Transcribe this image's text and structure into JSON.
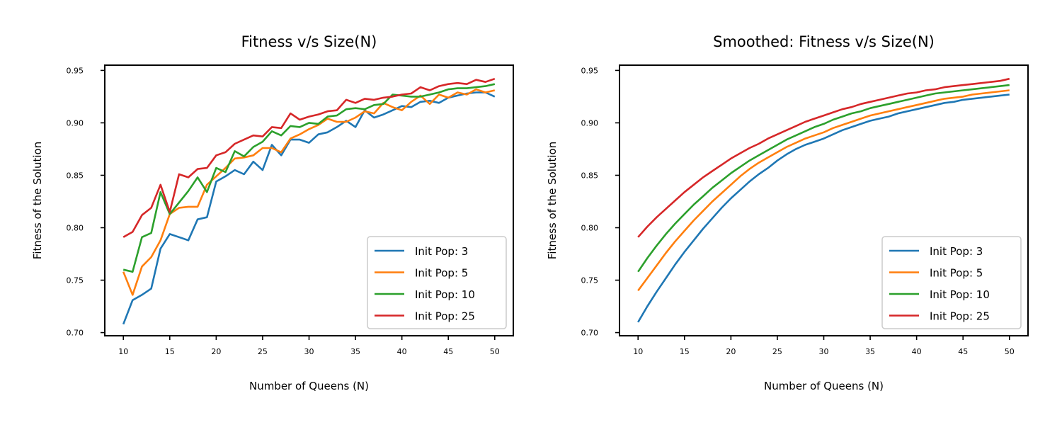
{
  "colors": {
    "blue": "#1f77b4",
    "orange": "#ff7f0e",
    "green": "#2ca02c",
    "red": "#d62728"
  },
  "chart_data": [
    {
      "type": "line",
      "title": "Fitness v/s Size(N)",
      "xlabel": "Number of Queens (N)",
      "ylabel": "Fitness of the Solution",
      "xlim": [
        8,
        52
      ],
      "ylim": [
        0.697,
        0.955
      ],
      "xticks": [
        10,
        15,
        20,
        25,
        30,
        35,
        40,
        45,
        50
      ],
      "xtick_labels": [
        "10",
        "15",
        "20",
        "25",
        "30",
        "35",
        "40",
        "45",
        "50"
      ],
      "yticks": [
        0.7,
        0.75,
        0.8,
        0.85,
        0.9,
        0.95
      ],
      "ytick_labels": [
        "0.70",
        "0.75",
        "0.80",
        "0.85",
        "0.90",
        "0.95"
      ],
      "grid": false,
      "legend_position": "lower-right",
      "x": [
        10,
        11,
        12,
        13,
        14,
        15,
        16,
        17,
        18,
        19,
        20,
        21,
        22,
        23,
        24,
        25,
        26,
        27,
        28,
        29,
        30,
        31,
        32,
        33,
        34,
        35,
        36,
        37,
        38,
        39,
        40,
        41,
        42,
        43,
        44,
        45,
        46,
        47,
        48,
        49,
        50
      ],
      "series": [
        {
          "name": "Init Pop: 3",
          "color": "#1f77b4",
          "values": [
            0.708,
            0.731,
            0.736,
            0.742,
            0.78,
            0.794,
            0.791,
            0.788,
            0.808,
            0.81,
            0.844,
            0.849,
            0.855,
            0.851,
            0.863,
            0.855,
            0.879,
            0.869,
            0.884,
            0.884,
            0.881,
            0.889,
            0.891,
            0.896,
            0.902,
            0.896,
            0.912,
            0.905,
            0.908,
            0.912,
            0.916,
            0.915,
            0.92,
            0.921,
            0.919,
            0.924,
            0.926,
            0.928,
            0.929,
            0.929,
            0.925
          ]
        },
        {
          "name": "Init Pop: 5",
          "color": "#ff7f0e",
          "values": [
            0.758,
            0.736,
            0.763,
            0.772,
            0.788,
            0.813,
            0.819,
            0.82,
            0.82,
            0.841,
            0.849,
            0.857,
            0.866,
            0.867,
            0.869,
            0.876,
            0.876,
            0.872,
            0.885,
            0.889,
            0.894,
            0.898,
            0.904,
            0.901,
            0.901,
            0.905,
            0.911,
            0.909,
            0.919,
            0.915,
            0.912,
            0.92,
            0.926,
            0.918,
            0.927,
            0.924,
            0.929,
            0.927,
            0.932,
            0.929,
            0.931
          ]
        },
        {
          "name": "Init Pop: 10",
          "color": "#2ca02c",
          "values": [
            0.76,
            0.758,
            0.791,
            0.795,
            0.834,
            0.813,
            0.824,
            0.835,
            0.848,
            0.834,
            0.857,
            0.853,
            0.873,
            0.868,
            0.877,
            0.882,
            0.892,
            0.888,
            0.897,
            0.896,
            0.9,
            0.899,
            0.906,
            0.907,
            0.913,
            0.914,
            0.913,
            0.917,
            0.918,
            0.927,
            0.926,
            0.925,
            0.925,
            0.927,
            0.929,
            0.932,
            0.933,
            0.933,
            0.934,
            0.935,
            0.937
          ]
        },
        {
          "name": "Init Pop: 25",
          "color": "#d62728",
          "values": [
            0.791,
            0.796,
            0.812,
            0.819,
            0.841,
            0.815,
            0.851,
            0.848,
            0.856,
            0.857,
            0.869,
            0.872,
            0.88,
            0.884,
            0.888,
            0.887,
            0.896,
            0.895,
            0.909,
            0.903,
            0.906,
            0.908,
            0.911,
            0.912,
            0.922,
            0.919,
            0.923,
            0.922,
            0.924,
            0.925,
            0.927,
            0.928,
            0.934,
            0.931,
            0.935,
            0.937,
            0.938,
            0.937,
            0.941,
            0.939,
            0.942
          ]
        }
      ]
    },
    {
      "type": "line",
      "title": "Smoothed: Fitness v/s Size(N)",
      "xlabel": "Number of Queens (N)",
      "ylabel": "Fitness of the Solution",
      "xlim": [
        8,
        52
      ],
      "ylim": [
        0.697,
        0.955
      ],
      "xticks": [
        10,
        15,
        20,
        25,
        30,
        35,
        40,
        45,
        50
      ],
      "xtick_labels": [
        "10",
        "15",
        "20",
        "25",
        "30",
        "35",
        "40",
        "45",
        "50"
      ],
      "yticks": [
        0.7,
        0.75,
        0.8,
        0.85,
        0.9,
        0.95
      ],
      "ytick_labels": [
        "0.70",
        "0.75",
        "0.80",
        "0.85",
        "0.90",
        "0.95"
      ],
      "grid": false,
      "legend_position": "lower-right",
      "x": [
        10,
        11,
        12,
        13,
        14,
        15,
        16,
        17,
        18,
        19,
        20,
        21,
        22,
        23,
        24,
        25,
        26,
        27,
        28,
        29,
        30,
        31,
        32,
        33,
        34,
        35,
        36,
        37,
        38,
        39,
        40,
        41,
        42,
        43,
        44,
        45,
        46,
        47,
        48,
        49,
        50
      ],
      "series": [
        {
          "name": "Init Pop: 3",
          "color": "#1f77b4",
          "values": [
            0.71,
            0.725,
            0.739,
            0.752,
            0.765,
            0.777,
            0.788,
            0.799,
            0.809,
            0.819,
            0.828,
            0.836,
            0.844,
            0.851,
            0.857,
            0.864,
            0.87,
            0.875,
            0.879,
            0.882,
            0.885,
            0.889,
            0.893,
            0.896,
            0.899,
            0.902,
            0.904,
            0.906,
            0.909,
            0.911,
            0.913,
            0.915,
            0.917,
            0.919,
            0.92,
            0.922,
            0.923,
            0.924,
            0.925,
            0.926,
            0.927
          ]
        },
        {
          "name": "Init Pop: 5",
          "color": "#ff7f0e",
          "values": [
            0.74,
            0.752,
            0.764,
            0.776,
            0.787,
            0.797,
            0.807,
            0.816,
            0.825,
            0.833,
            0.841,
            0.849,
            0.856,
            0.862,
            0.867,
            0.872,
            0.877,
            0.881,
            0.885,
            0.888,
            0.891,
            0.895,
            0.898,
            0.901,
            0.904,
            0.907,
            0.909,
            0.911,
            0.913,
            0.915,
            0.917,
            0.919,
            0.921,
            0.923,
            0.924,
            0.925,
            0.927,
            0.928,
            0.929,
            0.93,
            0.931
          ]
        },
        {
          "name": "Init Pop: 10",
          "color": "#2ca02c",
          "values": [
            0.758,
            0.771,
            0.783,
            0.794,
            0.804,
            0.813,
            0.822,
            0.83,
            0.838,
            0.845,
            0.852,
            0.858,
            0.864,
            0.869,
            0.874,
            0.879,
            0.884,
            0.888,
            0.892,
            0.896,
            0.899,
            0.903,
            0.906,
            0.909,
            0.911,
            0.914,
            0.916,
            0.918,
            0.92,
            0.922,
            0.924,
            0.926,
            0.928,
            0.929,
            0.93,
            0.931,
            0.932,
            0.933,
            0.934,
            0.935,
            0.936
          ]
        },
        {
          "name": "Init Pop: 25",
          "color": "#d62728",
          "values": [
            0.791,
            0.801,
            0.81,
            0.818,
            0.826,
            0.834,
            0.841,
            0.848,
            0.854,
            0.86,
            0.866,
            0.871,
            0.876,
            0.88,
            0.885,
            0.889,
            0.893,
            0.897,
            0.901,
            0.904,
            0.907,
            0.91,
            0.913,
            0.915,
            0.918,
            0.92,
            0.922,
            0.924,
            0.926,
            0.928,
            0.929,
            0.931,
            0.932,
            0.934,
            0.935,
            0.936,
            0.937,
            0.938,
            0.939,
            0.94,
            0.942
          ]
        }
      ]
    }
  ]
}
